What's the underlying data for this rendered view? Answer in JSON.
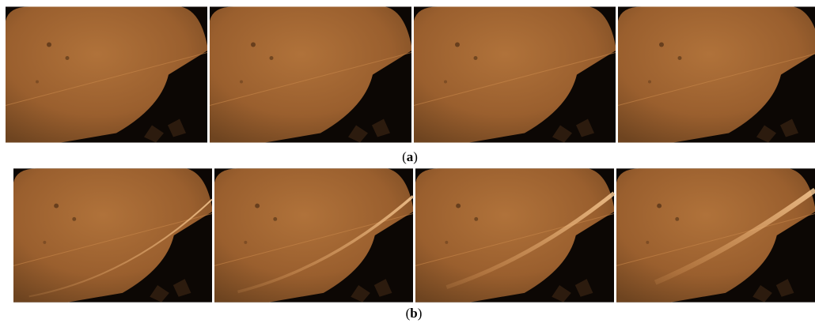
{
  "panels": [
    {
      "prefix": "(",
      "letter": "a",
      "suffix": ")"
    },
    {
      "prefix": "(",
      "letter": "b",
      "suffix": ")"
    }
  ]
}
